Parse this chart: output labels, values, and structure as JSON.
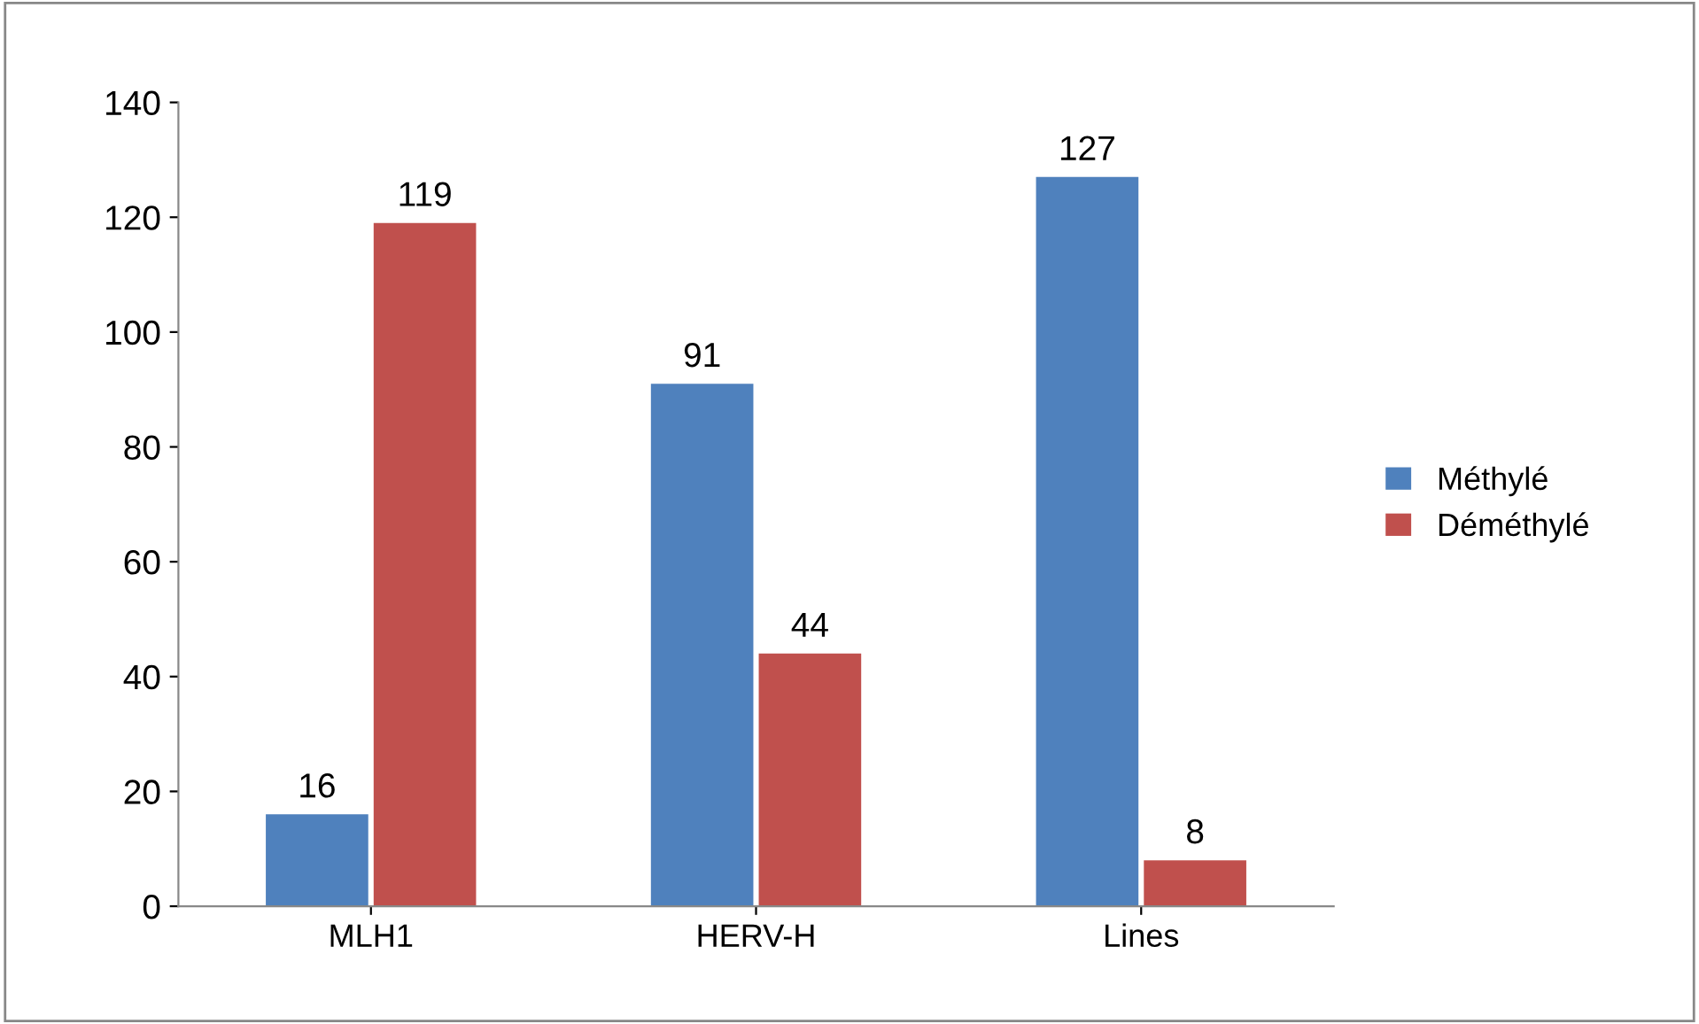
{
  "chart_data": {
    "type": "bar",
    "categories": [
      "MLH1",
      "HERV-H",
      "Lines"
    ],
    "series": [
      {
        "name": "Méthylé",
        "color": "#4f81bd",
        "values": [
          16,
          91,
          127
        ]
      },
      {
        "name": "Déméthylé",
        "color": "#c0504d",
        "values": [
          119,
          44,
          8
        ]
      }
    ],
    "ylim": [
      0,
      140
    ],
    "yticks": [
      0,
      20,
      40,
      60,
      80,
      100,
      120,
      140
    ],
    "grid": false,
    "legend": "right",
    "data_labels": true
  }
}
